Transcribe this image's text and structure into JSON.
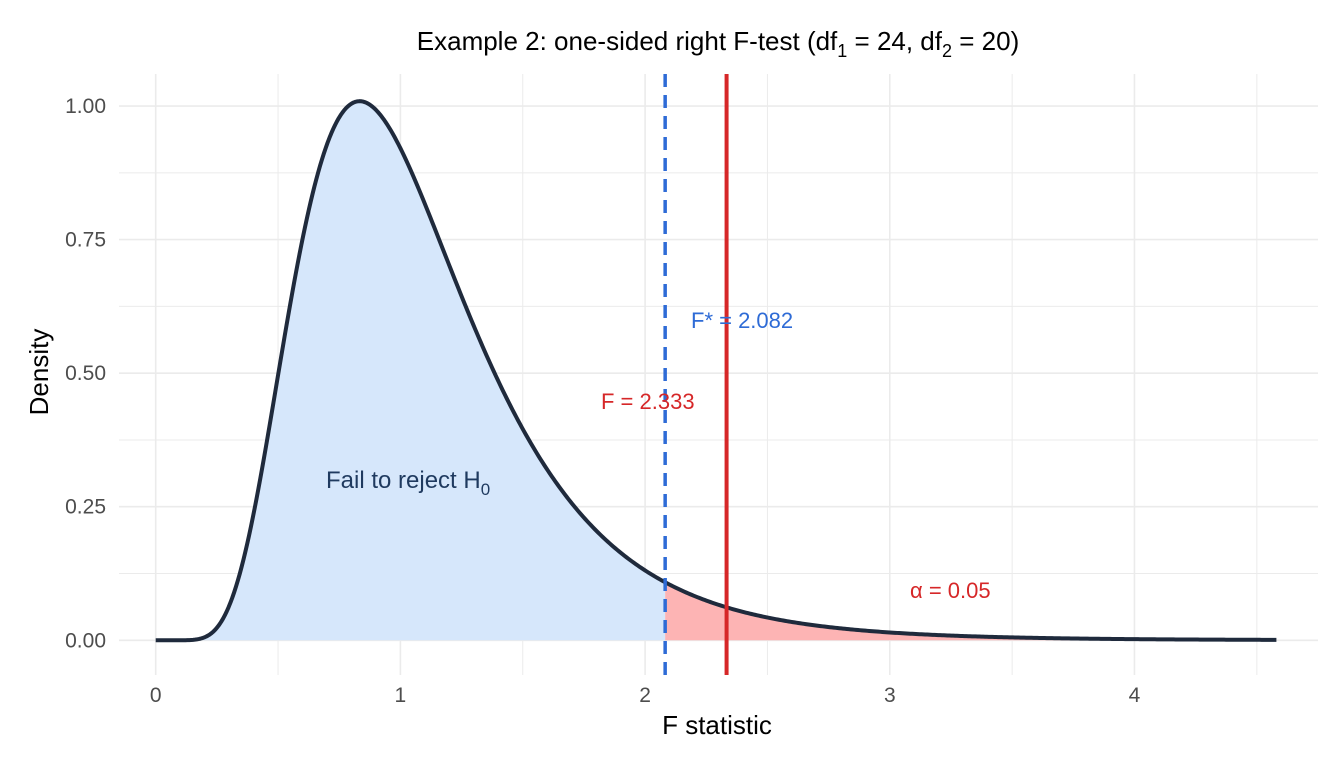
{
  "chart_data": {
    "type": "area",
    "title": "Example 2: one-sided right F-test (df",
    "title_sub1": "1",
    "title_mid": " = 24, df",
    "title_sub2": "2",
    "title_end": " = 20)",
    "xlabel": "F statistic",
    "ylabel": "Density",
    "xlim": [
      -0.15,
      4.75
    ],
    "ylim": [
      -0.065,
      1.06
    ],
    "xticks": [
      0,
      1,
      2,
      3,
      4
    ],
    "xtick_labels": [
      "0",
      "1",
      "2",
      "3",
      "4"
    ],
    "yticks": [
      0,
      0.25,
      0.5,
      0.75,
      1.0
    ],
    "ytick_labels": [
      "0.00",
      "0.25",
      "0.50",
      "0.75",
      "1.00"
    ],
    "grid": true,
    "distribution": {
      "df1": 24,
      "df2": 20,
      "x_min": 0,
      "x_max": 4.58
    },
    "critical_value": 2.082,
    "test_statistic": 2.333,
    "alpha": 0.05,
    "annotations": {
      "critical_label": "F* = 2.082",
      "statistic_label": "F = 2.333",
      "alpha_symbol": "α",
      "alpha_eq": " = 0.05",
      "fail_label": "Fail to reject H",
      "fail_sub": "0"
    },
    "colors": {
      "curve": "#1f2a3c",
      "fail_region": "#d6e7fb",
      "reject_region": "#fdb4b4",
      "critical_line": "#2e6bd6",
      "statistic_line": "#d62728",
      "grid": "#ebebeb",
      "fail_text": "#1f3a5f",
      "critical_text": "#2e6bd6",
      "statistic_text": "#d62728"
    }
  }
}
